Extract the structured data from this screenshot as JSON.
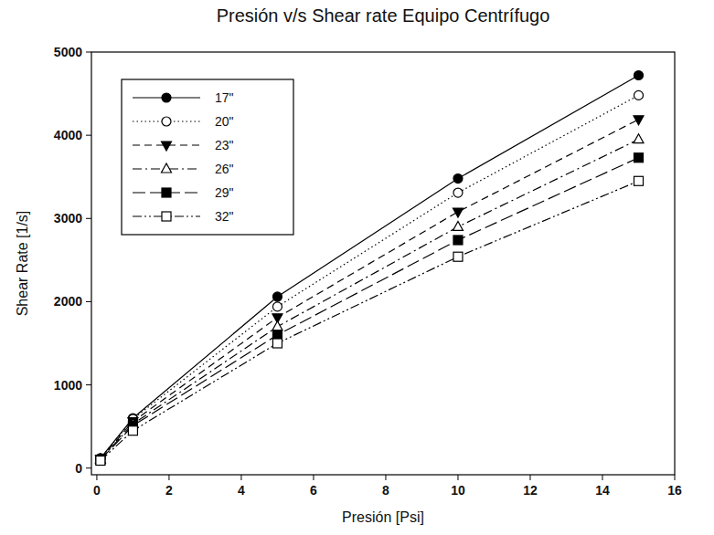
{
  "chart_data": {
    "type": "line",
    "title": "Presión v/s Shear rate Equipo Centrífugo",
    "x_label": "Presión [Psi]",
    "y_label": "Shear Rate [1/s]",
    "x": [
      0.1,
      1,
      5,
      10,
      15
    ],
    "series": [
      {
        "name": "17\"",
        "color": "#000000",
        "marker": "circle",
        "line_style": "solid",
        "values": [
          120,
          600,
          2060,
          3480,
          4720
        ]
      },
      {
        "name": "20\"",
        "color": "#000000",
        "marker": "circle-open",
        "line_style": "dotted",
        "values": [
          115,
          590,
          1940,
          3310,
          4480
        ]
      },
      {
        "name": "23\"",
        "color": "#000000",
        "marker": "triangle-down",
        "line_style": "dashed",
        "values": [
          110,
          560,
          1810,
          3080,
          4190
        ]
      },
      {
        "name": "26\"",
        "color": "#000000",
        "marker": "triangle-up-open",
        "line_style": "dashdot",
        "values": [
          105,
          530,
          1700,
          2900,
          3950
        ]
      },
      {
        "name": "29\"",
        "color": "#000000",
        "marker": "square",
        "line_style": "longdash",
        "values": [
          100,
          510,
          1600,
          2740,
          3730
        ]
      },
      {
        "name": "32\"",
        "color": "#000000",
        "marker": "square-open",
        "line_style": "dashdotdot",
        "values": [
          90,
          450,
          1500,
          2540,
          3450
        ]
      }
    ],
    "xlim": [
      -0.15,
      16
    ],
    "ylim": [
      -80,
      5000
    ],
    "xticks": [
      0,
      2,
      4,
      6,
      8,
      10,
      12,
      14,
      16
    ],
    "yticks": [
      0,
      1000,
      2000,
      3000,
      4000,
      5000
    ],
    "grid": false,
    "legend": "upper left"
  }
}
